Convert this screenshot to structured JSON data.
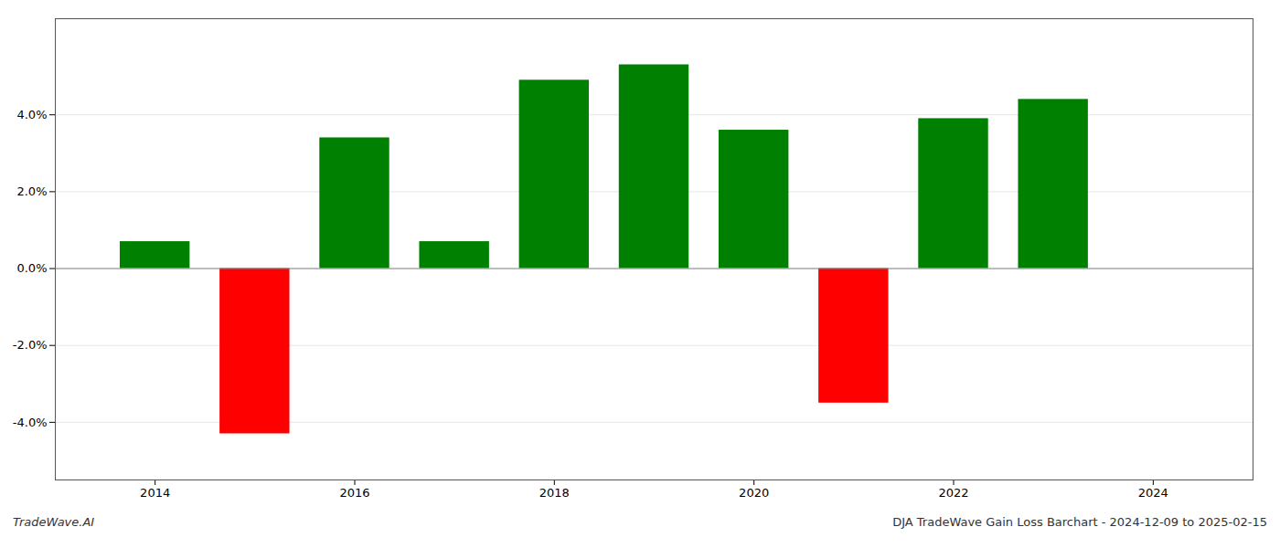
{
  "chart_data": {
    "type": "bar",
    "x": [
      2014,
      2015,
      2016,
      2017,
      2018,
      2019,
      2020,
      2021,
      2022,
      2023
    ],
    "values": [
      0.007,
      -0.043,
      0.034,
      0.007,
      0.049,
      0.053,
      0.036,
      -0.035,
      0.039,
      0.044
    ],
    "colors": [
      "#008000",
      "#ff0000",
      "#008000",
      "#008000",
      "#008000",
      "#008000",
      "#008000",
      "#ff0000",
      "#008000",
      "#008000"
    ],
    "xlim": [
      2013.0,
      2025.0
    ],
    "xticks": [
      2014,
      2016,
      2018,
      2020,
      2022,
      2024
    ],
    "ylim": [
      -0.055,
      0.065
    ],
    "yticks": [
      {
        "value": -0.04,
        "label": "-4.0%"
      },
      {
        "value": -0.02,
        "label": "-2.0%"
      },
      {
        "value": 0.0,
        "label": "0.0%"
      },
      {
        "value": 0.02,
        "label": "2.0%"
      },
      {
        "value": 0.04,
        "label": "4.0%"
      }
    ],
    "grid": true,
    "annotations": [
      "TradeWave.AI",
      "DJA TradeWave Gain Loss Barchart - 2024-12-09 to 2025-02-15"
    ]
  }
}
